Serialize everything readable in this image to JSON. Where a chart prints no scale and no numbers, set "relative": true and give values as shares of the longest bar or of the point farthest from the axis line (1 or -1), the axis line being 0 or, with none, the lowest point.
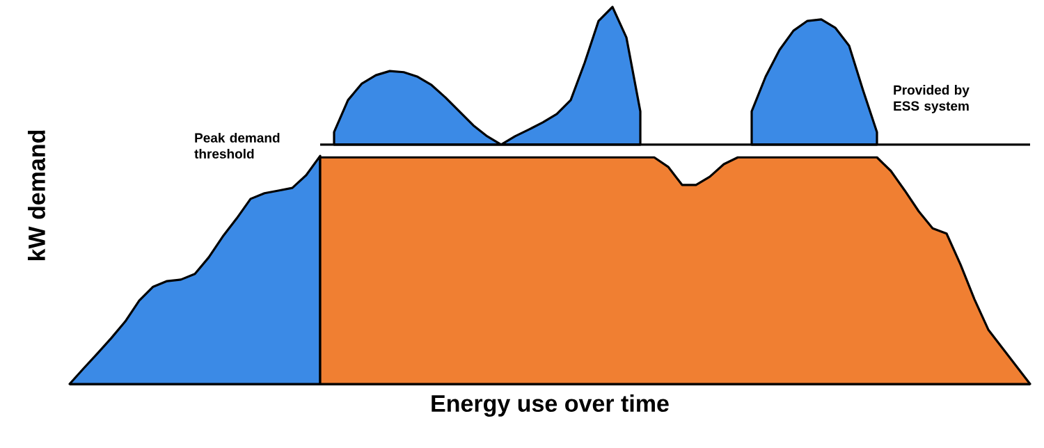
{
  "chart_data": {
    "type": "area",
    "relative": true,
    "xlabel": "Energy use over time",
    "ylabel": "kW demand",
    "categories": [
      null,
      null,
      null,
      null,
      null,
      null,
      null,
      null,
      null,
      null,
      null,
      null,
      null,
      null,
      null,
      null,
      null,
      null,
      null,
      null,
      null,
      null,
      null,
      null,
      null,
      null,
      null,
      null,
      null,
      null,
      null,
      null,
      null,
      null,
      null,
      null,
      null,
      null,
      null,
      null,
      null,
      null,
      null,
      null,
      null,
      null,
      null,
      null,
      null,
      null,
      null,
      null,
      null,
      null,
      null,
      null,
      null,
      null,
      null,
      null,
      null,
      null,
      null,
      null,
      null,
      null,
      null,
      null,
      null,
      null
    ],
    "series": [
      {
        "color": "#3b8ae6",
        "values": [
          0,
          0.041,
          0.081,
          0.122,
          0.166,
          0.221,
          0.258,
          0.273,
          0.277,
          0.292,
          0.336,
          0.391,
          0.439,
          0.491,
          0.506,
          0.513,
          0.52,
          0.554,
          0.605,
          null,
          null,
          null,
          null,
          null,
          null,
          null,
          null,
          null,
          null,
          null,
          null,
          null,
          null,
          null,
          null,
          null,
          null,
          null,
          null,
          null,
          null,
          null,
          null,
          null,
          null,
          null,
          null,
          null,
          null,
          null,
          null,
          null,
          null,
          null,
          null,
          null,
          null,
          null,
          null,
          null,
          null,
          null,
          null,
          null,
          null,
          null,
          null,
          null,
          null,
          null
        ]
      },
      {
        "color": "#f07f32",
        "values": [
          null,
          null,
          null,
          null,
          null,
          null,
          null,
          null,
          null,
          null,
          null,
          null,
          null,
          null,
          null,
          null,
          null,
          null,
          0.601,
          0.601,
          0.601,
          0.601,
          0.601,
          0.601,
          0.601,
          0.601,
          0.601,
          0.601,
          0.601,
          0.601,
          0.601,
          0.601,
          0.601,
          0.601,
          0.601,
          0.601,
          0.601,
          0.601,
          0.601,
          0.601,
          0.601,
          0.601,
          0.601,
          0.576,
          0.528,
          0.528,
          0.55,
          0.583,
          0.601,
          0.601,
          0.601,
          0.601,
          0.601,
          0.601,
          0.601,
          0.601,
          0.601,
          0.601,
          0.601,
          0.565,
          0.513,
          0.458,
          0.413,
          0.399,
          0.317,
          0.225,
          0.144,
          0.096,
          0.048,
          0
        ]
      },
      {
        "color": "#3b8ae6",
        "values": [
          null,
          null,
          null,
          null,
          null,
          null,
          null,
          null,
          null,
          null,
          null,
          null,
          null,
          null,
          null,
          null,
          null,
          null,
          null,
          0.668,
          0.753,
          0.797,
          0.819,
          0.83,
          0.827,
          0.815,
          0.793,
          0.76,
          0.723,
          0.686,
          0.657,
          0.635,
          0.657,
          0.675,
          0.694,
          0.716,
          0.753,
          0.852,
          0.963,
          1,
          0.919,
          0.723,
          null,
          null,
          null,
          null,
          null,
          null,
          null,
          0.723,
          0.815,
          0.886,
          0.937,
          0.963,
          0.967,
          0.945,
          0.897,
          0.779,
          0.668,
          null,
          null,
          null,
          null,
          null,
          null,
          null,
          null,
          null,
          null,
          null
        ]
      }
    ],
    "ref_lines": [
      {
        "axis": "y",
        "value": 0.635,
        "label": "Peak demand threshold",
        "color": "#000000"
      }
    ],
    "annotations": [
      "Provided by ESS system"
    ]
  }
}
